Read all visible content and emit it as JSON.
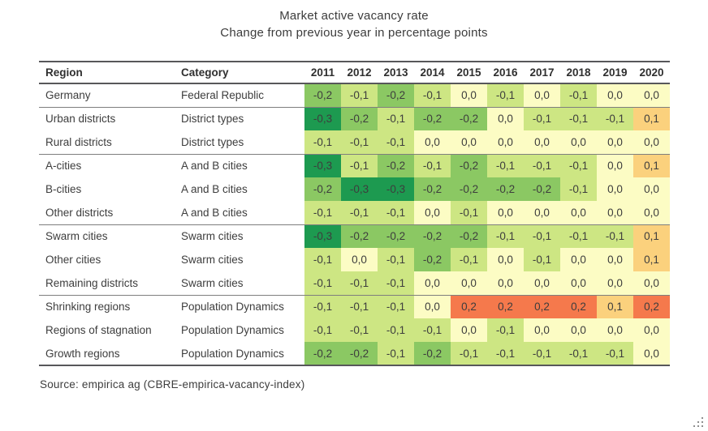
{
  "chart_data": {
    "type": "heatmap",
    "title": "Market active vacancy rate",
    "subtitle": "Change from previous year in percentage points",
    "source": "Source: empirica ag (CBRE-empirica-vacancy-index)",
    "column_headers": {
      "region": "Region",
      "category": "Category"
    },
    "years": [
      "2011",
      "2012",
      "2013",
      "2014",
      "2015",
      "2016",
      "2017",
      "2018",
      "2019",
      "2020"
    ],
    "decimal_separator": ",",
    "rows": [
      {
        "region": "Germany",
        "category": "Federal Republic",
        "values": [
          -0.2,
          -0.1,
          -0.2,
          -0.1,
          0.0,
          -0.1,
          0.0,
          -0.1,
          0.0,
          0.0
        ]
      },
      {
        "region": "Urban districts",
        "category": "District types",
        "values": [
          -0.3,
          -0.2,
          -0.1,
          -0.2,
          -0.2,
          0.0,
          -0.1,
          -0.1,
          -0.1,
          0.1
        ]
      },
      {
        "region": "Rural districts",
        "category": "District types",
        "values": [
          -0.1,
          -0.1,
          -0.1,
          0.0,
          0.0,
          0.0,
          0.0,
          0.0,
          0.0,
          0.0
        ]
      },
      {
        "region": "A-cities",
        "category": "A and B cities",
        "values": [
          -0.3,
          -0.1,
          -0.2,
          -0.1,
          -0.2,
          -0.1,
          -0.1,
          -0.1,
          0.0,
          0.1
        ]
      },
      {
        "region": "B-cities",
        "category": "A and B cities",
        "values": [
          -0.2,
          -0.3,
          -0.3,
          -0.2,
          -0.2,
          -0.2,
          -0.2,
          -0.1,
          0.0,
          0.0
        ]
      },
      {
        "region": "Other districts",
        "category": "A and B cities",
        "values": [
          -0.1,
          -0.1,
          -0.1,
          0.0,
          -0.1,
          0.0,
          0.0,
          0.0,
          0.0,
          0.0
        ]
      },
      {
        "region": "Swarm cities",
        "category": "Swarm cities",
        "values": [
          -0.3,
          -0.2,
          -0.2,
          -0.2,
          -0.2,
          -0.1,
          -0.1,
          -0.1,
          -0.1,
          0.1
        ]
      },
      {
        "region": "Other cities",
        "category": "Swarm cities",
        "values": [
          -0.1,
          0.0,
          -0.1,
          -0.2,
          -0.1,
          0.0,
          -0.1,
          0.0,
          0.0,
          0.1
        ]
      },
      {
        "region": "Remaining districts",
        "category": "Swarm cities",
        "values": [
          -0.1,
          -0.1,
          -0.1,
          0.0,
          0.0,
          0.0,
          0.0,
          0.0,
          0.0,
          0.0
        ]
      },
      {
        "region": "Shrinking regions",
        "category": "Population Dynamics",
        "values": [
          -0.1,
          -0.1,
          -0.1,
          0.0,
          0.2,
          0.2,
          0.2,
          0.2,
          0.1,
          0.2
        ]
      },
      {
        "region": "Regions of stagnation",
        "category": "Population Dynamics",
        "values": [
          -0.1,
          -0.1,
          -0.1,
          -0.1,
          0.0,
          -0.1,
          0.0,
          0.0,
          0.0,
          0.0
        ]
      },
      {
        "region": "Growth regions",
        "category": "Population Dynamics",
        "values": [
          -0.2,
          -0.2,
          -0.1,
          -0.2,
          -0.1,
          -0.1,
          -0.1,
          -0.1,
          -0.1,
          0.0
        ]
      }
    ],
    "group_breaks_after_row": [
      0,
      2,
      5,
      8
    ],
    "value_color_scale": {
      "-0.3": "#1d9a50",
      "-0.2": "#8bc863",
      "-0.1": "#cde683",
      "0.0": "#fcfcc4",
      "0.1": "#fbd17d",
      "0.2": "#f5794c"
    }
  },
  "colors": {
    "rule_dark": "#57575a",
    "rule_light": "#7e7e7e",
    "text": "#3d3d3d",
    "background": "#ffffff"
  }
}
